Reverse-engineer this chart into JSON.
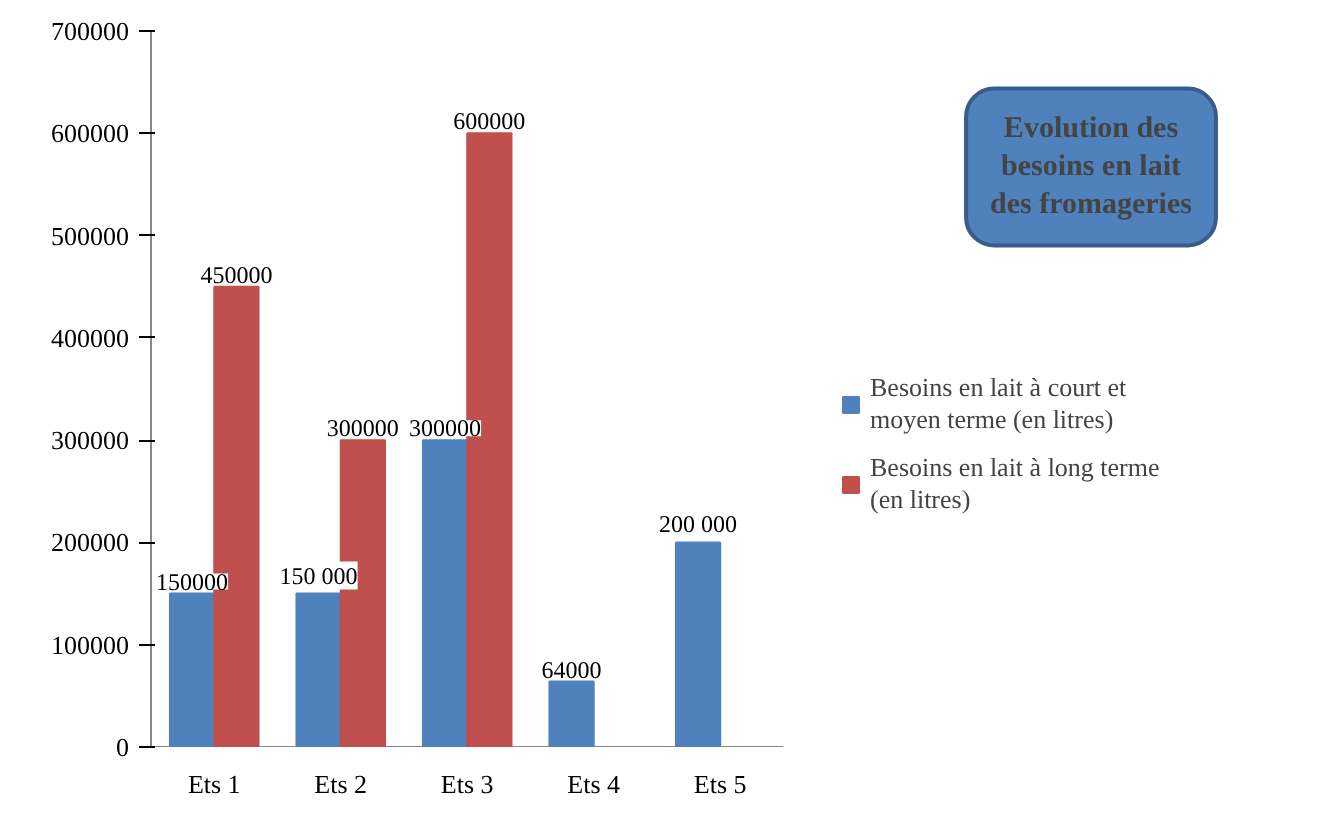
{
  "chart_data": {
    "type": "bar",
    "title": "Evolution des besoins en lait des fromageries",
    "categories": [
      "Ets 1",
      "Ets 2",
      "Ets 3",
      "Ets 4",
      "Ets 5"
    ],
    "series": [
      {
        "name": "Besoins en lait à court et moyen terme (en litres)",
        "color": "#4f81bd",
        "values": [
          150000,
          150000,
          300000,
          64000,
          200000
        ],
        "value_labels": [
          "150000",
          "150 000",
          "300000",
          "64000",
          "200 000"
        ]
      },
      {
        "name": "Besoins en lait à long terme (en litres)",
        "color": "#c0504d",
        "values": [
          450000,
          300000,
          600000,
          null,
          null
        ],
        "value_labels": [
          "450000",
          "300000",
          "600000",
          null,
          null
        ]
      }
    ],
    "ylim": [
      0,
      700000
    ],
    "yticks": [
      0,
      100000,
      200000,
      300000,
      400000,
      500000,
      600000,
      700000
    ],
    "grid": false,
    "legend": "right"
  }
}
